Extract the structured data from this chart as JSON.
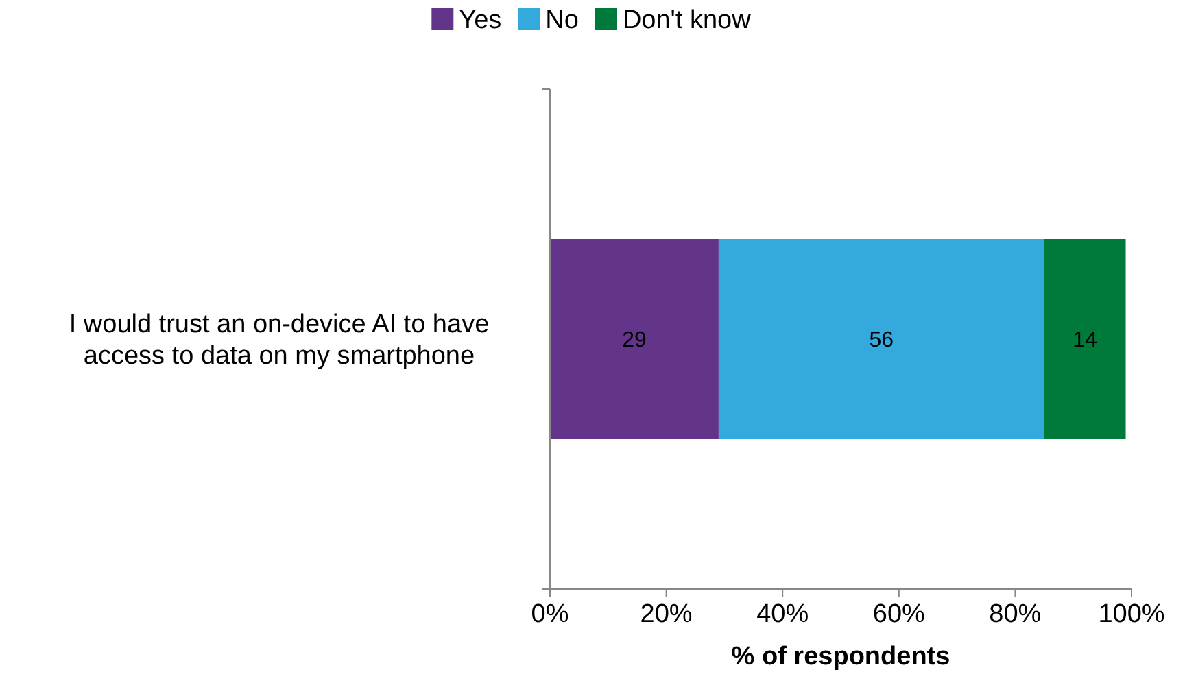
{
  "chart_data": {
    "type": "bar",
    "orientation": "horizontal",
    "stacked": true,
    "categories": [
      "I would trust an on-device AI to have access to data on my smartphone"
    ],
    "series": [
      {
        "name": "Yes",
        "color": "#63358a",
        "values": [
          29
        ]
      },
      {
        "name": "No",
        "color": "#33a9de",
        "values": [
          56
        ]
      },
      {
        "name": "Don't know",
        "color": "#007a3a",
        "values": [
          14
        ]
      }
    ],
    "xlim": [
      0,
      100
    ],
    "xticks": [
      {
        "value": 0,
        "label": "0%"
      },
      {
        "value": 20,
        "label": "20%"
      },
      {
        "value": 40,
        "label": "40%"
      },
      {
        "value": 60,
        "label": "60%"
      },
      {
        "value": 80,
        "label": "80%"
      },
      {
        "value": 100,
        "label": "100%"
      }
    ],
    "xlabel": "% of respondents",
    "data_labels": true,
    "legend": "top"
  }
}
